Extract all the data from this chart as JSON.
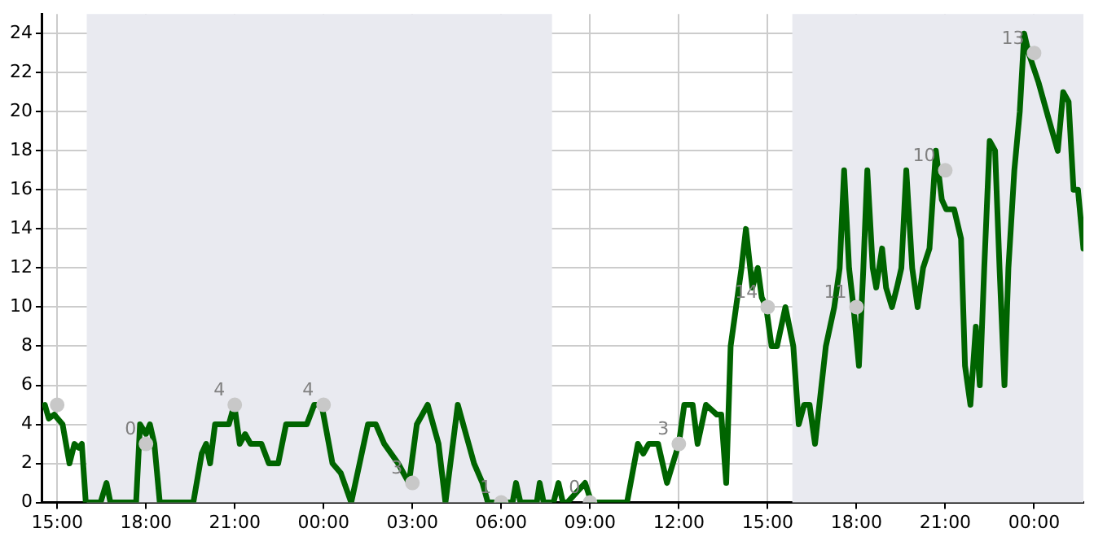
{
  "chart_data": {
    "type": "line",
    "xlim": [
      "--01-01T14:30",
      "--01-03T01:40"
    ],
    "ylim": [
      0,
      25
    ],
    "xticks": [
      {
        "value": "--01-01T15:00",
        "label": "15:00"
      },
      {
        "value": "--01-01T18:00",
        "label": "18:00"
      },
      {
        "value": "--01-01T21:00",
        "label": "21:00"
      },
      {
        "value": "--01-02T00:00",
        "label": "00:00"
      },
      {
        "value": "--01-02T03:00",
        "label": "03:00"
      },
      {
        "value": "--01-02T06:00",
        "label": "06:00"
      },
      {
        "value": "--01-02T09:00",
        "label": "09:00"
      },
      {
        "value": "--01-02T12:00",
        "label": "12:00"
      },
      {
        "value": "--01-02T15:00",
        "label": "15:00"
      },
      {
        "value": "--01-02T18:00",
        "label": "18:00"
      },
      {
        "value": "--01-02T21:00",
        "label": "21:00"
      },
      {
        "value": "--01-03T00:00",
        "label": "00:00"
      }
    ],
    "yticks": [
      0,
      2,
      4,
      6,
      8,
      10,
      12,
      14,
      16,
      18,
      20,
      22,
      24
    ],
    "grid": true,
    "legend": false,
    "line_style": "solid",
    "bands": [
      {
        "axis": "x",
        "from": "--01-01T16:00",
        "to": "--01-02T07:43",
        "color": "#e9eaf0"
      },
      {
        "axis": "x",
        "from": "--01-02T15:50",
        "to": "--01-03T01:40",
        "color": "#e9eaf0"
      }
    ],
    "annotations": [
      {
        "text": "0",
        "x": "--01-01T18:00",
        "y": 3
      },
      {
        "text": "4",
        "x": "--01-01T21:00",
        "y": 5
      },
      {
        "text": "4",
        "x": "--01-02T00:00",
        "y": 5
      },
      {
        "text": "3",
        "x": "--01-02T03:00",
        "y": 1
      },
      {
        "text": "1",
        "x": "--01-02T06:00",
        "y": 0
      },
      {
        "text": "0",
        "x": "--01-02T09:00",
        "y": 0
      },
      {
        "text": "3",
        "x": "--01-02T12:00",
        "y": 3
      },
      {
        "text": "14",
        "x": "--01-02T15:00",
        "y": 10
      },
      {
        "text": "11",
        "x": "--01-02T18:00",
        "y": 10
      },
      {
        "text": "10",
        "x": "--01-02T21:00",
        "y": 17
      },
      {
        "text": "13",
        "x": "--01-03T00:00",
        "y": 23
      }
    ],
    "series": [
      {
        "color": "#006400",
        "marker": "none",
        "x": [
          "--01-01T14:35",
          "--01-01T14:43",
          "--01-01T14:54",
          "--01-01T15:11",
          "--01-01T15:25",
          "--01-01T15:35",
          "--01-01T15:44",
          "--01-01T15:50",
          "--01-01T15:58",
          "--01-01T16:28",
          "--01-01T16:40",
          "--01-01T16:48",
          "--01-01T17:40",
          "--01-01T17:48",
          "--01-01T18:00",
          "--01-01T18:08",
          "--01-01T18:17",
          "--01-01T18:28",
          "--01-01T19:36",
          "--01-01T19:53",
          "--01-01T20:02",
          "--01-01T20:10",
          "--01-01T20:20",
          "--01-01T20:48",
          "--01-01T20:59",
          "--01-01T21:10",
          "--01-01T21:21",
          "--01-01T21:32",
          "--01-01T21:54",
          "--01-01T22:09",
          "--01-01T22:28",
          "--01-01T22:44",
          "--01-01T23:26",
          "--01-01T23:41",
          "--01-01T23:56",
          "--01-02T00:18",
          "--01-02T00:35",
          "--01-02T00:56",
          "--01-02T01:30",
          "--01-02T01:46",
          "--01-02T02:03",
          "--01-02T02:31",
          "--01-02T02:53",
          "--01-02T03:09",
          "--01-02T03:31",
          "--01-02T03:53",
          "--01-02T04:07",
          "--01-02T04:32",
          "--01-02T05:05",
          "--01-02T05:22",
          "--01-02T05:33",
          "--01-02T06:23",
          "--01-02T06:30",
          "--01-02T06:39",
          "--01-02T07:12",
          "--01-02T07:18",
          "--01-02T07:26",
          "--01-02T07:46",
          "--01-02T07:56",
          "--01-02T08:05",
          "--01-02T08:14",
          "--01-02T08:50",
          "--01-02T09:03",
          "--01-02T10:15",
          "--01-02T10:37",
          "--01-02T10:48",
          "--01-02T10:59",
          "--01-02T11:18",
          "--01-02T11:36",
          "--01-02T12:00",
          "--01-02T12:11",
          "--01-02T12:28",
          "--01-02T12:38",
          "--01-02T12:55",
          "--01-02T13:17",
          "--01-02T13:26",
          "--01-02T13:36",
          "--01-02T13:45",
          "--01-02T13:56",
          "--01-02T14:07",
          "--01-02T14:16",
          "--01-02T14:29",
          "--01-02T14:40",
          "--01-02T14:48",
          "--01-02T14:57",
          "--01-02T15:08",
          "--01-02T15:19",
          "--01-02T15:36",
          "--01-02T15:52",
          "--01-02T16:03",
          "--01-02T16:14",
          "--01-02T16:25",
          "--01-02T16:36",
          "--01-02T16:58",
          "--01-02T17:15",
          "--01-02T17:26",
          "--01-02T17:35",
          "--01-02T17:45",
          "--01-02T17:54",
          "--01-02T18:05",
          "--01-02T18:14",
          "--01-02T18:22",
          "--01-02T18:33",
          "--01-02T18:40",
          "--01-02T18:52",
          "--01-02T19:00",
          "--01-02T19:12",
          "--01-02T19:22",
          "--01-02T19:31",
          "--01-02T19:41",
          "--01-02T19:53",
          "--01-02T20:04",
          "--01-02T20:15",
          "--01-02T20:28",
          "--01-02T20:41",
          "--01-02T20:53",
          "--01-02T21:02",
          "--01-02T21:18",
          "--01-02T21:32",
          "--01-02T21:40",
          "--01-02T21:51",
          "--01-02T22:02",
          "--01-02T22:10",
          "--01-02T22:19",
          "--01-02T22:30",
          "--01-02T22:41",
          "--01-02T22:50",
          "--01-02T23:00",
          "--01-02T23:08",
          "--01-02T23:20",
          "--01-02T23:31",
          "--01-02T23:40",
          "--01-02T23:49",
          "--01-03T00:09",
          "--01-03T00:31",
          "--01-03T00:48",
          "--01-03T00:59",
          "--01-03T01:10",
          "--01-03T01:20",
          "--01-03T01:29",
          "--01-03T01:40"
        ],
        "values": [
          5,
          4.3,
          4.5,
          4,
          2,
          3,
          2.8,
          3,
          0,
          0,
          1,
          0,
          0,
          4,
          3.5,
          4,
          3,
          0,
          0,
          2.5,
          3,
          2,
          4,
          4,
          5,
          3,
          3.5,
          3,
          3,
          2,
          2,
          4,
          4,
          5,
          5,
          2,
          1.5,
          0,
          4,
          4,
          3,
          2,
          1,
          4,
          5,
          3,
          0,
          5,
          2,
          1,
          0,
          0,
          1,
          0,
          0,
          1,
          0,
          0,
          1,
          0,
          0,
          1,
          0,
          0,
          3,
          2.5,
          3,
          3,
          1,
          3,
          5,
          5,
          3,
          5,
          4.5,
          4.5,
          1,
          8,
          10,
          12,
          14,
          11,
          12,
          10.5,
          10,
          8,
          8,
          10,
          8,
          4,
          5,
          5,
          3,
          8,
          10,
          12,
          17,
          12,
          10,
          7,
          12,
          17,
          12,
          11,
          13,
          11,
          10,
          11,
          12,
          17,
          12,
          10,
          12,
          13,
          18,
          15.5,
          15,
          15,
          13.5,
          7,
          5,
          9,
          6,
          12,
          18.5,
          18,
          12,
          6,
          12,
          17,
          20,
          24,
          23,
          21.5,
          19.5,
          18,
          21,
          20.5,
          16,
          16,
          13
        ]
      },
      {
        "type": "scatter",
        "color": "#c8c8c8",
        "marker": "circle",
        "x": [
          "--01-01T15:00",
          "--01-01T18:00",
          "--01-01T21:00",
          "--01-02T00:00",
          "--01-02T03:00",
          "--01-02T06:00",
          "--01-02T09:00",
          "--01-02T12:00",
          "--01-02T15:00",
          "--01-02T18:00",
          "--01-02T21:00",
          "--01-03T00:00"
        ],
        "values": [
          5,
          3,
          5,
          5,
          1,
          0,
          0,
          3,
          10,
          10,
          17,
          23
        ]
      }
    ]
  }
}
